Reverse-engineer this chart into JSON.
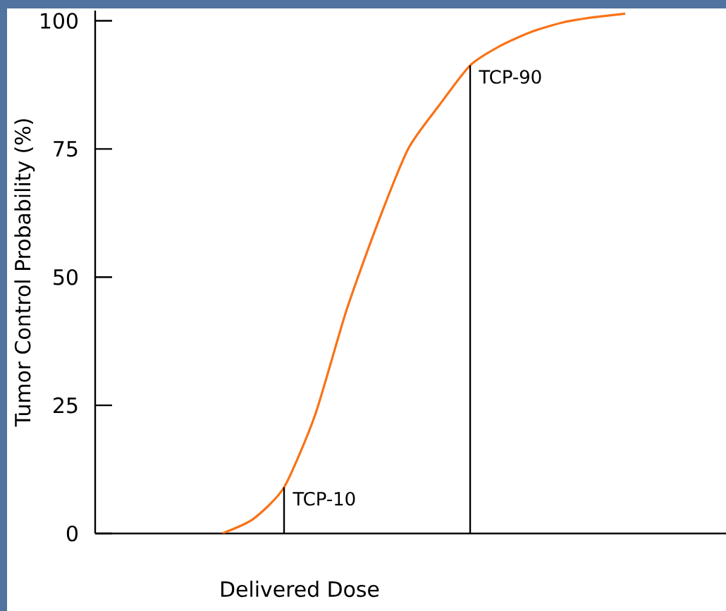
{
  "chart_data": {
    "type": "line",
    "xlabel": "Delivered Dose",
    "ylabel": "Tumor Control Probability (%)",
    "categories": [
      null,
      null,
      null,
      null,
      null,
      null,
      null,
      null,
      null,
      null,
      null,
      null,
      null,
      null
    ],
    "series": [
      {
        "color": "#f97216",
        "values": [
          0,
          2.8,
          9,
          23.1,
          43.3,
          60.2,
          75,
          83.5,
          91.3,
          95.2,
          97.9,
          99.7,
          100.7,
          101.4
        ]
      }
    ],
    "ylim": [
      0,
      102
    ],
    "yticks": [
      0,
      25,
      50,
      75,
      100
    ],
    "annotations": [
      "TCP-10",
      "TCP-90"
    ],
    "marker": "none",
    "line_style": "solid"
  }
}
